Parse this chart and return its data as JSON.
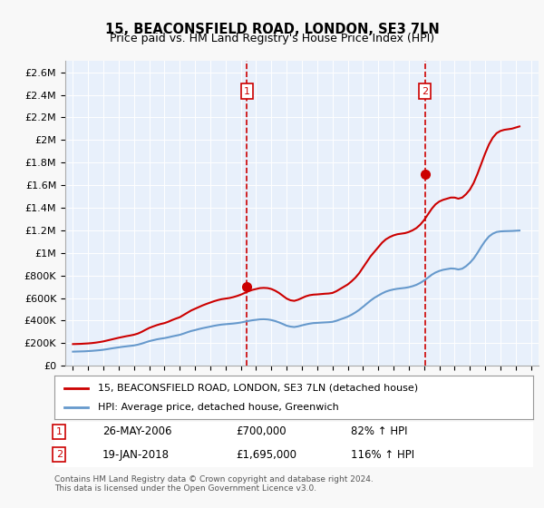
{
  "title": "15, BEACONSFIELD ROAD, LONDON, SE3 7LN",
  "subtitle": "Price paid vs. HM Land Registry's House Price Index (HPI)",
  "title_fontsize": 11,
  "subtitle_fontsize": 9.5,
  "background_color": "#e8f0fb",
  "plot_bg_color": "#e8f0fb",
  "grid_color": "#ffffff",
  "red_color": "#cc0000",
  "blue_color": "#6699cc",
  "ylim": [
    0,
    2700000
  ],
  "yticks": [
    0,
    200000,
    400000,
    600000,
    800000,
    1000000,
    1200000,
    1400000,
    1600000,
    1800000,
    2000000,
    2200000,
    2400000,
    2600000
  ],
  "ytick_labels": [
    "£0",
    "£200K",
    "£400K",
    "£600K",
    "£800K",
    "£1M",
    "£1.2M",
    "£1.4M",
    "£1.6M",
    "£1.8M",
    "£2M",
    "£2.2M",
    "£2.4M",
    "£2.6M"
  ],
  "xlim_start": 1994.5,
  "xlim_end": 2025.5,
  "sale1_year": 2006.4,
  "sale1_price": 700000,
  "sale1_label": "1",
  "sale1_date": "26-MAY-2006",
  "sale1_amount": "£700,000",
  "sale1_hpi": "82% ↑ HPI",
  "sale2_year": 2018.05,
  "sale2_price": 1695000,
  "sale2_label": "2",
  "sale2_date": "19-JAN-2018",
  "sale2_amount": "£1,695,000",
  "sale2_hpi": "116% ↑ HPI",
  "legend_line1": "15, BEACONSFIELD ROAD, LONDON, SE3 7LN (detached house)",
  "legend_line2": "HPI: Average price, detached house, Greenwich",
  "footer": "Contains HM Land Registry data © Crown copyright and database right 2024.\nThis data is licensed under the Open Government Licence v3.0.",
  "red_hpi_data": {
    "years": [
      1995.0,
      1995.25,
      1995.5,
      1995.75,
      1996.0,
      1996.25,
      1996.5,
      1996.75,
      1997.0,
      1997.25,
      1997.5,
      1997.75,
      1998.0,
      1998.25,
      1998.5,
      1998.75,
      1999.0,
      1999.25,
      1999.5,
      1999.75,
      2000.0,
      2000.25,
      2000.5,
      2000.75,
      2001.0,
      2001.25,
      2001.5,
      2001.75,
      2002.0,
      2002.25,
      2002.5,
      2002.75,
      2003.0,
      2003.25,
      2003.5,
      2003.75,
      2004.0,
      2004.25,
      2004.5,
      2004.75,
      2005.0,
      2005.25,
      2005.5,
      2005.75,
      2006.0,
      2006.25,
      2006.5,
      2006.75,
      2007.0,
      2007.25,
      2007.5,
      2007.75,
      2008.0,
      2008.25,
      2008.5,
      2008.75,
      2009.0,
      2009.25,
      2009.5,
      2009.75,
      2010.0,
      2010.25,
      2010.5,
      2010.75,
      2011.0,
      2011.25,
      2011.5,
      2011.75,
      2012.0,
      2012.25,
      2012.5,
      2012.75,
      2013.0,
      2013.25,
      2013.5,
      2013.75,
      2014.0,
      2014.25,
      2014.5,
      2014.75,
      2015.0,
      2015.25,
      2015.5,
      2015.75,
      2016.0,
      2016.25,
      2016.5,
      2016.75,
      2017.0,
      2017.25,
      2017.5,
      2017.75,
      2018.0,
      2018.25,
      2018.5,
      2018.75,
      2019.0,
      2019.25,
      2019.5,
      2019.75,
      2020.0,
      2020.25,
      2020.5,
      2020.75,
      2021.0,
      2021.25,
      2021.5,
      2021.75,
      2022.0,
      2022.25,
      2022.5,
      2022.75,
      2023.0,
      2023.25,
      2023.5,
      2023.75,
      2024.0,
      2024.25
    ],
    "values": [
      192000,
      193000,
      194000,
      196000,
      198000,
      201000,
      205000,
      210000,
      216000,
      224000,
      232000,
      240000,
      248000,
      255000,
      262000,
      268000,
      275000,
      285000,
      300000,
      318000,
      335000,
      348000,
      360000,
      370000,
      378000,
      390000,
      405000,
      418000,
      430000,
      450000,
      470000,
      490000,
      505000,
      520000,
      535000,
      548000,
      560000,
      572000,
      582000,
      590000,
      595000,
      600000,
      608000,
      618000,
      630000,
      645000,
      660000,
      672000,
      680000,
      688000,
      690000,
      688000,
      680000,
      665000,
      645000,
      620000,
      595000,
      580000,
      575000,
      585000,
      600000,
      615000,
      625000,
      630000,
      632000,
      635000,
      638000,
      640000,
      645000,
      660000,
      680000,
      700000,
      720000,
      748000,
      780000,
      820000,
      870000,
      920000,
      970000,
      1010000,
      1050000,
      1090000,
      1120000,
      1140000,
      1155000,
      1165000,
      1170000,
      1175000,
      1185000,
      1200000,
      1220000,
      1250000,
      1290000,
      1340000,
      1390000,
      1430000,
      1455000,
      1470000,
      1480000,
      1490000,
      1490000,
      1480000,
      1490000,
      1520000,
      1560000,
      1620000,
      1700000,
      1790000,
      1880000,
      1960000,
      2020000,
      2060000,
      2080000,
      2090000,
      2095000,
      2100000,
      2110000,
      2120000
    ]
  },
  "blue_hpi_data": {
    "years": [
      1995.0,
      1995.25,
      1995.5,
      1995.75,
      1996.0,
      1996.25,
      1996.5,
      1996.75,
      1997.0,
      1997.25,
      1997.5,
      1997.75,
      1998.0,
      1998.25,
      1998.5,
      1998.75,
      1999.0,
      1999.25,
      1999.5,
      1999.75,
      2000.0,
      2000.25,
      2000.5,
      2000.75,
      2001.0,
      2001.25,
      2001.5,
      2001.75,
      2002.0,
      2002.25,
      2002.5,
      2002.75,
      2003.0,
      2003.25,
      2003.5,
      2003.75,
      2004.0,
      2004.25,
      2004.5,
      2004.75,
      2005.0,
      2005.25,
      2005.5,
      2005.75,
      2006.0,
      2006.25,
      2006.5,
      2006.75,
      2007.0,
      2007.25,
      2007.5,
      2007.75,
      2008.0,
      2008.25,
      2008.5,
      2008.75,
      2009.0,
      2009.25,
      2009.5,
      2009.75,
      2010.0,
      2010.25,
      2010.5,
      2010.75,
      2011.0,
      2011.25,
      2011.5,
      2011.75,
      2012.0,
      2012.25,
      2012.5,
      2012.75,
      2013.0,
      2013.25,
      2013.5,
      2013.75,
      2014.0,
      2014.25,
      2014.5,
      2014.75,
      2015.0,
      2015.25,
      2015.5,
      2015.75,
      2016.0,
      2016.25,
      2016.5,
      2016.75,
      2017.0,
      2017.25,
      2017.5,
      2017.75,
      2018.0,
      2018.25,
      2018.5,
      2018.75,
      2019.0,
      2019.25,
      2019.5,
      2019.75,
      2020.0,
      2020.25,
      2020.5,
      2020.75,
      2021.0,
      2021.25,
      2021.5,
      2021.75,
      2022.0,
      2022.25,
      2022.5,
      2022.75,
      2023.0,
      2023.25,
      2023.5,
      2023.75,
      2024.0,
      2024.25
    ],
    "values": [
      125000,
      126000,
      127000,
      128000,
      130000,
      132000,
      135000,
      138000,
      142000,
      147000,
      153000,
      158000,
      163000,
      168000,
      172000,
      176000,
      180000,
      187000,
      196000,
      207000,
      218000,
      226000,
      234000,
      240000,
      245000,
      252000,
      260000,
      267000,
      274000,
      285000,
      297000,
      308000,
      316000,
      325000,
      333000,
      340000,
      347000,
      354000,
      360000,
      365000,
      368000,
      371000,
      374000,
      378000,
      383000,
      390000,
      397000,
      403000,
      407000,
      411000,
      412000,
      410000,
      405000,
      396000,
      384000,
      370000,
      355000,
      347000,
      343000,
      349000,
      358000,
      366000,
      373000,
      378000,
      380000,
      382000,
      384000,
      386000,
      389000,
      398000,
      410000,
      422000,
      435000,
      452000,
      472000,
      495000,
      522000,
      550000,
      578000,
      602000,
      622000,
      641000,
      657000,
      668000,
      676000,
      682000,
      686000,
      690000,
      696000,
      705000,
      717000,
      734000,
      755000,
      780000,
      806000,
      826000,
      840000,
      850000,
      856000,
      862000,
      860000,
      853000,
      860000,
      882000,
      912000,
      950000,
      1000000,
      1055000,
      1105000,
      1145000,
      1170000,
      1185000,
      1190000,
      1192000,
      1193000,
      1194000,
      1196000,
      1198000
    ]
  }
}
